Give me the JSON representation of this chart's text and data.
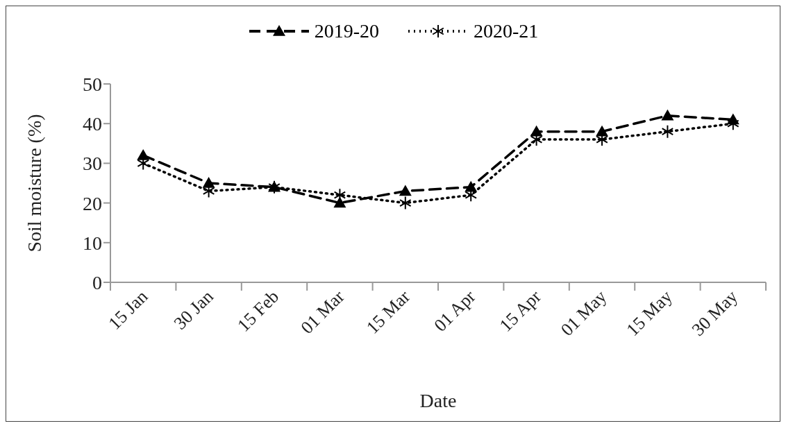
{
  "chart_data": {
    "type": "line",
    "xlabel": "Date",
    "ylabel": "Soil moisture (%)",
    "categories": [
      "15 Jan",
      "30 Jan",
      "15 Feb",
      "01 Mar",
      "15 Mar",
      "01 Apr",
      "15 Apr",
      "01 May",
      "15 May",
      "30 May"
    ],
    "series": [
      {
        "name": "2019-20",
        "color": "#000000",
        "line_style": "dashed",
        "marker": "triangle",
        "values": [
          32,
          25,
          24,
          20,
          23,
          24,
          38,
          38,
          42,
          41
        ]
      },
      {
        "name": "2020-21",
        "color": "#000000",
        "line_style": "dotted",
        "marker": "cross",
        "values": [
          30,
          23,
          24,
          22,
          20,
          22,
          36,
          36,
          38,
          40
        ]
      }
    ],
    "ylim": [
      0,
      50
    ],
    "yticks": [
      0,
      10,
      20,
      30,
      40,
      50
    ],
    "grid": false,
    "legend": "top"
  }
}
